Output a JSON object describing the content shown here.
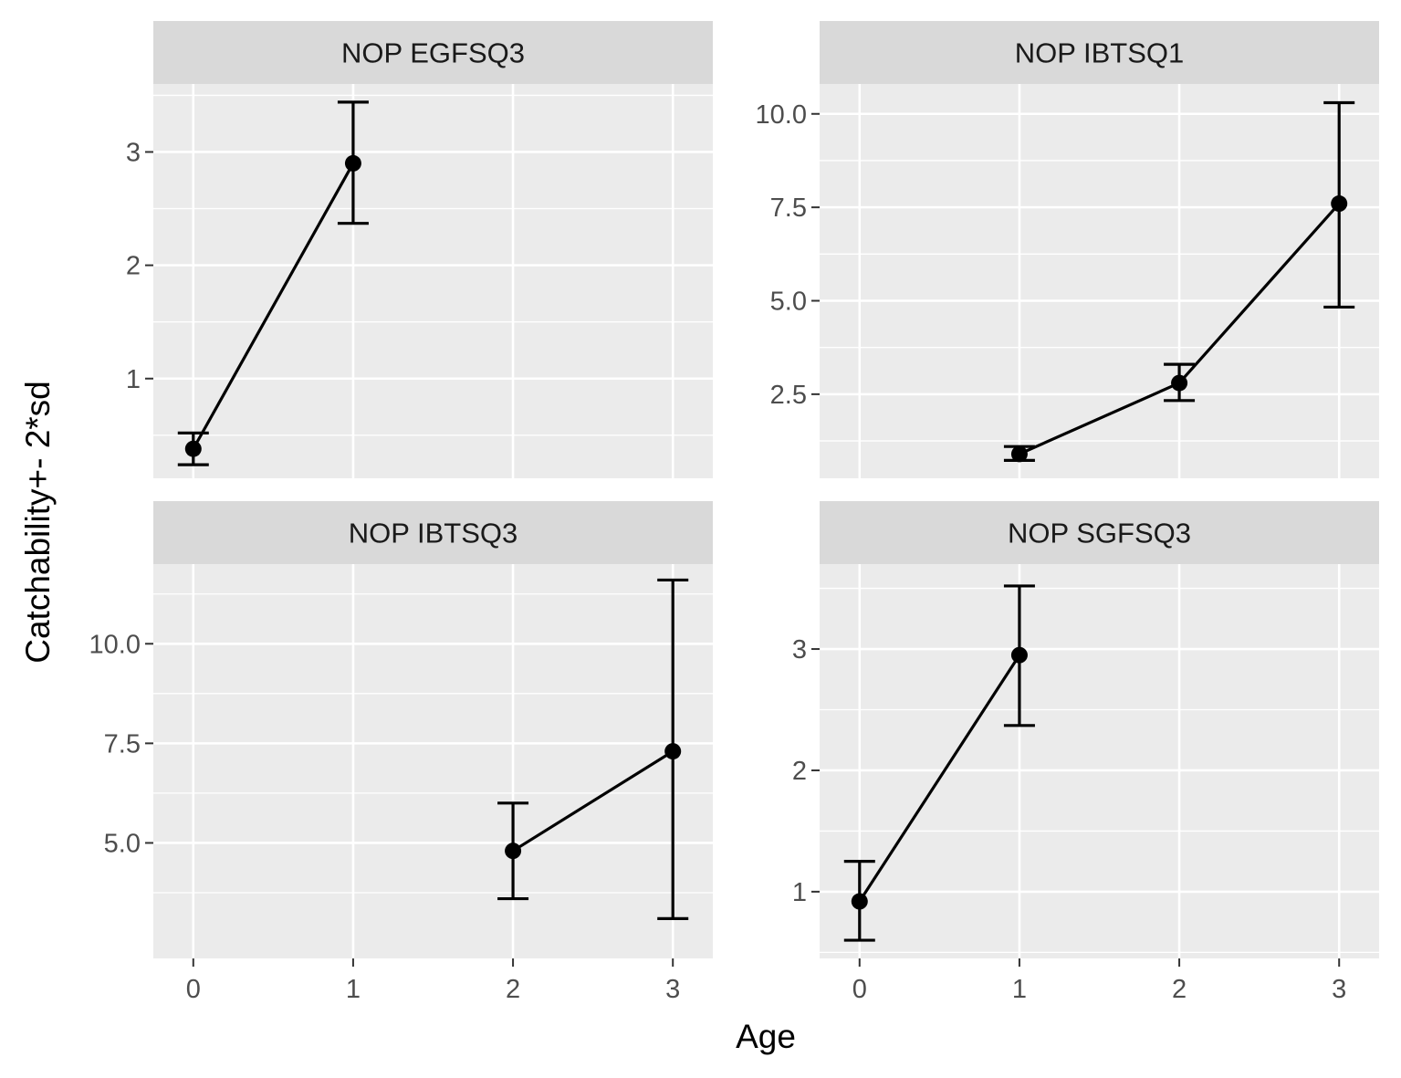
{
  "chart_data": {
    "type": "line",
    "facets": "wrap",
    "x_label": "Age",
    "y_label": "Catchability+- 2*sd",
    "x_ticks": [
      0,
      1,
      2,
      3
    ],
    "xlim": [
      -0.25,
      3.25
    ],
    "scales": "free_y",
    "grid": true,
    "colors": {
      "panel_bg": "#ebebeb",
      "strip_bg": "#d9d9d9",
      "grid": "#ffffff",
      "line": "#000000"
    },
    "panels": [
      {
        "title": "NOP EGFSQ3",
        "y_ticks": [
          1,
          2,
          3
        ],
        "y_tick_labels": [
          "1",
          "2",
          "3"
        ],
        "ylim": [
          0.12,
          3.6
        ],
        "points": [
          {
            "age": 0,
            "value": 0.38,
            "lower": 0.24,
            "upper": 0.52
          },
          {
            "age": 1,
            "value": 2.9,
            "lower": 2.37,
            "upper": 3.44
          }
        ]
      },
      {
        "title": "NOP IBTSQ1",
        "y_ticks": [
          2.5,
          5.0,
          7.5,
          10.0
        ],
        "y_tick_labels": [
          "2.5",
          "5.0",
          "7.5",
          "10.0"
        ],
        "ylim": [
          0.25,
          10.8
        ],
        "points": [
          {
            "age": 1,
            "value": 0.9,
            "lower": 0.73,
            "upper": 1.1
          },
          {
            "age": 2,
            "value": 2.8,
            "lower": 2.33,
            "upper": 3.3
          },
          {
            "age": 3,
            "value": 7.6,
            "lower": 4.83,
            "upper": 10.3
          }
        ]
      },
      {
        "title": "NOP IBTSQ3",
        "y_ticks": [
          5.0,
          7.5,
          10.0
        ],
        "y_tick_labels": [
          "5.0",
          "7.5",
          "10.0"
        ],
        "ylim": [
          2.1,
          12.0
        ],
        "points": [
          {
            "age": 2,
            "value": 4.8,
            "lower": 3.6,
            "upper": 6.0
          },
          {
            "age": 3,
            "value": 7.3,
            "lower": 3.1,
            "upper": 11.6
          }
        ]
      },
      {
        "title": "NOP SGFSQ3",
        "y_ticks": [
          1,
          2,
          3
        ],
        "y_tick_labels": [
          "1",
          "2",
          "3"
        ],
        "ylim": [
          0.45,
          3.7
        ],
        "points": [
          {
            "age": 0,
            "value": 0.92,
            "lower": 0.6,
            "upper": 1.25
          },
          {
            "age": 1,
            "value": 2.95,
            "lower": 2.37,
            "upper": 3.52
          }
        ]
      }
    ]
  }
}
